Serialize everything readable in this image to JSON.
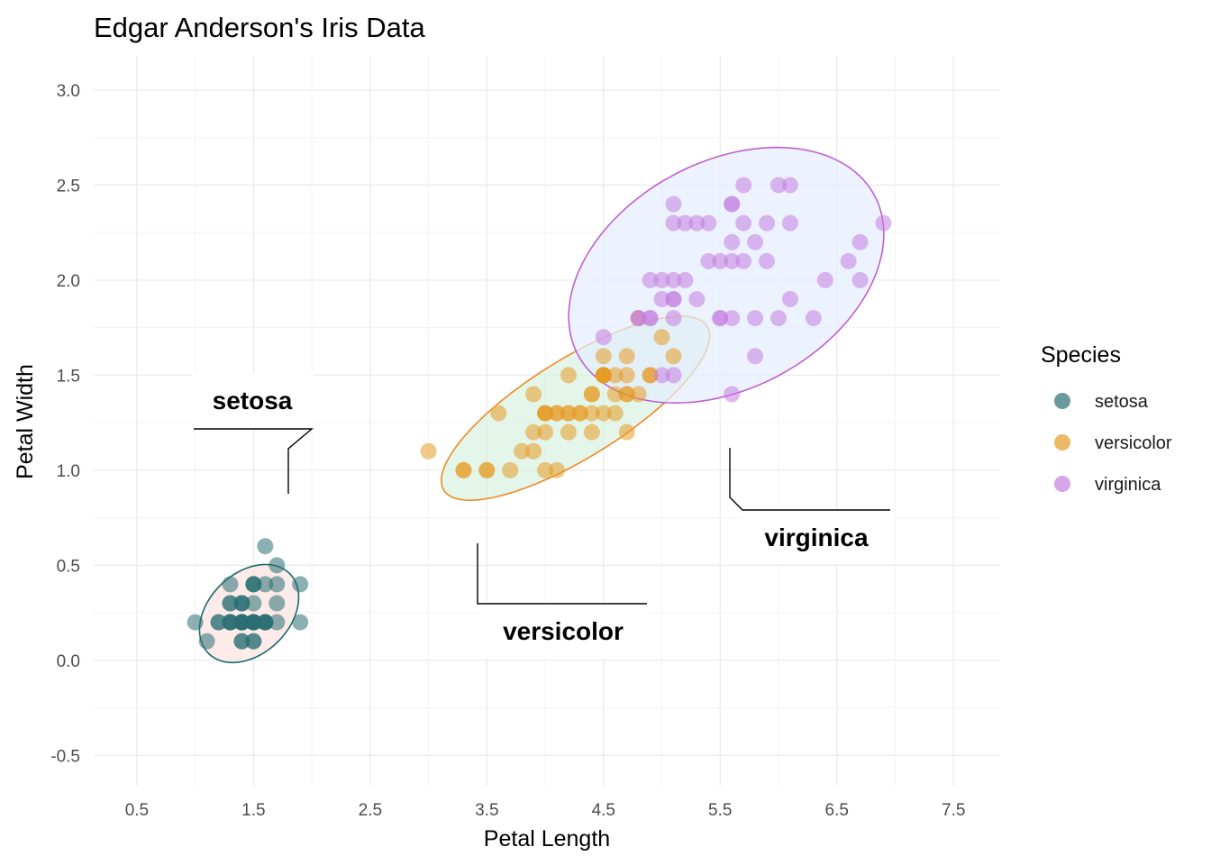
{
  "chart_data": {
    "type": "scatter",
    "title": "Edgar Anderson's Iris Data",
    "xlabel": "Petal Length",
    "ylabel": "Petal Width",
    "xlim": [
      0.13,
      7.9
    ],
    "ylim": [
      -0.66,
      3.18
    ],
    "x_ticks": [
      0.5,
      1.5,
      2.5,
      3.5,
      4.5,
      5.5,
      6.5,
      7.5
    ],
    "x_tick_labels": [
      "0.5",
      "1.5",
      "2.5",
      "3.5",
      "4.5",
      "5.5",
      "6.5",
      "7.5"
    ],
    "y_ticks": [
      -0.5,
      0.0,
      0.5,
      1.0,
      1.5,
      2.0,
      2.5,
      3.0
    ],
    "y_tick_labels": [
      "-0.5",
      "0.0",
      "0.5",
      "1.0",
      "1.5",
      "2.0",
      "2.5",
      "3.0"
    ],
    "grid": true,
    "legend": {
      "title": "Species",
      "position": "right"
    },
    "series": [
      {
        "name": "setosa",
        "color": "#2a7072",
        "ellipse": {
          "fill": "#fbe3e0",
          "stroke": "#1a6a6c"
        },
        "points": [
          [
            1.4,
            0.2
          ],
          [
            1.4,
            0.2
          ],
          [
            1.3,
            0.2
          ],
          [
            1.5,
            0.2
          ],
          [
            1.4,
            0.2
          ],
          [
            1.7,
            0.4
          ],
          [
            1.4,
            0.3
          ],
          [
            1.5,
            0.2
          ],
          [
            1.4,
            0.2
          ],
          [
            1.5,
            0.1
          ],
          [
            1.5,
            0.2
          ],
          [
            1.6,
            0.2
          ],
          [
            1.4,
            0.1
          ],
          [
            1.1,
            0.1
          ],
          [
            1.2,
            0.2
          ],
          [
            1.5,
            0.4
          ],
          [
            1.3,
            0.4
          ],
          [
            1.4,
            0.3
          ],
          [
            1.7,
            0.3
          ],
          [
            1.5,
            0.3
          ],
          [
            1.7,
            0.2
          ],
          [
            1.5,
            0.4
          ],
          [
            1.0,
            0.2
          ],
          [
            1.7,
            0.5
          ],
          [
            1.9,
            0.2
          ],
          [
            1.6,
            0.2
          ],
          [
            1.6,
            0.4
          ],
          [
            1.5,
            0.2
          ],
          [
            1.4,
            0.2
          ],
          [
            1.6,
            0.2
          ],
          [
            1.6,
            0.2
          ],
          [
            1.5,
            0.4
          ],
          [
            1.5,
            0.1
          ],
          [
            1.4,
            0.2
          ],
          [
            1.5,
            0.2
          ],
          [
            1.2,
            0.2
          ],
          [
            1.3,
            0.2
          ],
          [
            1.4,
            0.1
          ],
          [
            1.3,
            0.2
          ],
          [
            1.5,
            0.2
          ],
          [
            1.3,
            0.3
          ],
          [
            1.3,
            0.3
          ],
          [
            1.3,
            0.2
          ],
          [
            1.6,
            0.6
          ],
          [
            1.9,
            0.4
          ],
          [
            1.4,
            0.3
          ],
          [
            1.6,
            0.2
          ],
          [
            1.4,
            0.2
          ],
          [
            1.5,
            0.2
          ],
          [
            1.4,
            0.2
          ]
        ]
      },
      {
        "name": "versicolor",
        "color": "#e69a25",
        "ellipse": {
          "fill": "#d8f1e0",
          "stroke": "#ee8a1e"
        },
        "points": [
          [
            4.7,
            1.4
          ],
          [
            4.5,
            1.5
          ],
          [
            4.9,
            1.5
          ],
          [
            4.0,
            1.3
          ],
          [
            4.6,
            1.5
          ],
          [
            4.5,
            1.3
          ],
          [
            4.7,
            1.6
          ],
          [
            3.3,
            1.0
          ],
          [
            4.6,
            1.3
          ],
          [
            3.9,
            1.4
          ],
          [
            3.5,
            1.0
          ],
          [
            4.2,
            1.5
          ],
          [
            4.0,
            1.0
          ],
          [
            4.7,
            1.4
          ],
          [
            3.6,
            1.3
          ],
          [
            4.4,
            1.4
          ],
          [
            4.5,
            1.5
          ],
          [
            4.1,
            1.0
          ],
          [
            4.5,
            1.5
          ],
          [
            3.9,
            1.1
          ],
          [
            4.8,
            1.8
          ],
          [
            4.0,
            1.3
          ],
          [
            4.9,
            1.5
          ],
          [
            4.7,
            1.2
          ],
          [
            4.3,
            1.3
          ],
          [
            4.4,
            1.4
          ],
          [
            4.8,
            1.4
          ],
          [
            5.0,
            1.7
          ],
          [
            4.5,
            1.5
          ],
          [
            3.5,
            1.0
          ],
          [
            3.8,
            1.1
          ],
          [
            3.7,
            1.0
          ],
          [
            3.9,
            1.2
          ],
          [
            5.1,
            1.6
          ],
          [
            4.5,
            1.5
          ],
          [
            4.5,
            1.6
          ],
          [
            4.7,
            1.5
          ],
          [
            4.4,
            1.3
          ],
          [
            4.1,
            1.3
          ],
          [
            4.0,
            1.3
          ],
          [
            4.4,
            1.2
          ],
          [
            4.6,
            1.4
          ],
          [
            4.0,
            1.2
          ],
          [
            3.3,
            1.0
          ],
          [
            4.2,
            1.3
          ],
          [
            4.2,
            1.2
          ],
          [
            4.2,
            1.3
          ],
          [
            4.3,
            1.3
          ],
          [
            3.0,
            1.1
          ],
          [
            4.1,
            1.3
          ]
        ]
      },
      {
        "name": "virginica",
        "color": "#c57ee0",
        "ellipse": {
          "fill": "#e4eefd",
          "stroke": "#c05fd0"
        },
        "points": [
          [
            6.0,
            2.5
          ],
          [
            5.1,
            1.9
          ],
          [
            5.9,
            2.1
          ],
          [
            5.6,
            1.8
          ],
          [
            5.8,
            2.2
          ],
          [
            6.6,
            2.1
          ],
          [
            4.5,
            1.7
          ],
          [
            6.3,
            1.8
          ],
          [
            5.8,
            1.8
          ],
          [
            6.1,
            2.5
          ],
          [
            5.1,
            2.0
          ],
          [
            5.3,
            1.9
          ],
          [
            5.5,
            2.1
          ],
          [
            5.0,
            2.0
          ],
          [
            5.1,
            2.4
          ],
          [
            5.3,
            2.3
          ],
          [
            5.5,
            1.8
          ],
          [
            6.7,
            2.2
          ],
          [
            6.9,
            2.3
          ],
          [
            5.0,
            1.5
          ],
          [
            5.7,
            2.3
          ],
          [
            4.9,
            2.0
          ],
          [
            6.7,
            2.0
          ],
          [
            4.9,
            1.8
          ],
          [
            5.7,
            2.1
          ],
          [
            6.0,
            1.8
          ],
          [
            4.8,
            1.8
          ],
          [
            4.9,
            1.8
          ],
          [
            5.6,
            2.1
          ],
          [
            5.8,
            1.6
          ],
          [
            6.1,
            1.9
          ],
          [
            6.4,
            2.0
          ],
          [
            5.6,
            2.2
          ],
          [
            5.1,
            1.5
          ],
          [
            5.6,
            1.4
          ],
          [
            6.1,
            2.3
          ],
          [
            5.6,
            2.4
          ],
          [
            5.5,
            1.8
          ],
          [
            4.8,
            1.8
          ],
          [
            5.4,
            2.1
          ],
          [
            5.6,
            2.4
          ],
          [
            5.1,
            2.3
          ],
          [
            5.1,
            1.9
          ],
          [
            5.9,
            2.3
          ],
          [
            5.7,
            2.5
          ],
          [
            5.2,
            2.3
          ],
          [
            5.0,
            1.9
          ],
          [
            5.2,
            2.0
          ],
          [
            5.4,
            2.3
          ],
          [
            5.1,
            1.8
          ]
        ]
      }
    ],
    "annotations": [
      {
        "label": "setosa"
      },
      {
        "label": "versicolor"
      },
      {
        "label": "virginica"
      }
    ]
  }
}
